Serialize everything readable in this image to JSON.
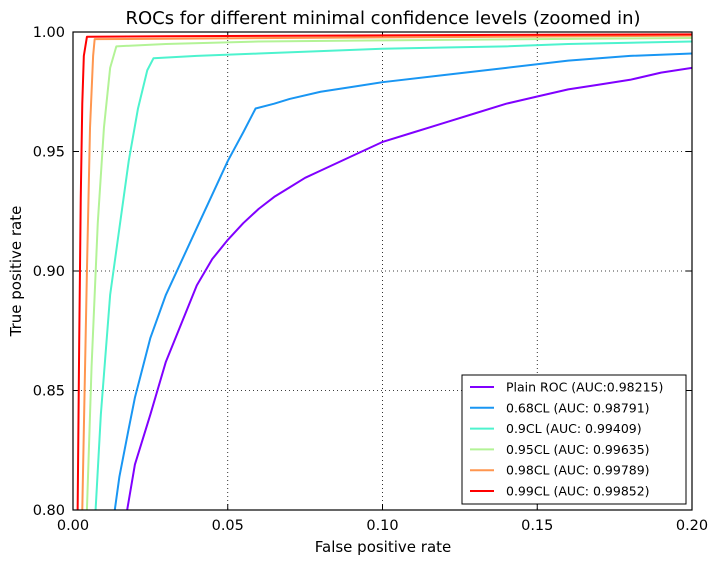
{
  "chart_data": {
    "type": "line",
    "title": "ROCs for different minimal confidence levels (zoomed in)",
    "xlabel": "False positive rate",
    "ylabel": "True positive rate",
    "xlim": [
      0.0,
      0.2
    ],
    "ylim": [
      0.8,
      1.0
    ],
    "xticks": [
      0.0,
      0.05,
      0.1,
      0.15,
      0.2
    ],
    "xtick_labels": [
      "0.00",
      "0.05",
      "0.10",
      "0.15",
      "0.20"
    ],
    "yticks": [
      0.8,
      0.85,
      0.9,
      0.95,
      1.0
    ],
    "ytick_labels": [
      "0.80",
      "0.85",
      "0.90",
      "0.95",
      "1.00"
    ],
    "grid": true,
    "legend_position": "lower-right",
    "series": [
      {
        "name": "Plain ROC (AUC:0.98215)",
        "color": "#8000ff",
        "x": [
          0.0175,
          0.02,
          0.025,
          0.03,
          0.035,
          0.04,
          0.045,
          0.05,
          0.055,
          0.06,
          0.065,
          0.07,
          0.075,
          0.08,
          0.09,
          0.1,
          0.11,
          0.12,
          0.13,
          0.14,
          0.15,
          0.16,
          0.17,
          0.18,
          0.19,
          0.2
        ],
        "y": [
          0.8,
          0.819,
          0.84,
          0.862,
          0.878,
          0.894,
          0.905,
          0.913,
          0.92,
          0.926,
          0.931,
          0.935,
          0.939,
          0.942,
          0.948,
          0.954,
          0.958,
          0.962,
          0.966,
          0.97,
          0.973,
          0.976,
          0.978,
          0.98,
          0.983,
          0.985
        ]
      },
      {
        "name": "0.68CL (AUC: 0.98791)",
        "color": "#1996f3",
        "x": [
          0.0135,
          0.015,
          0.018,
          0.02,
          0.025,
          0.03,
          0.035,
          0.04,
          0.045,
          0.05,
          0.055,
          0.059,
          0.065,
          0.07,
          0.08,
          0.09,
          0.1,
          0.12,
          0.14,
          0.16,
          0.18,
          0.2
        ],
        "y": [
          0.8,
          0.814,
          0.834,
          0.847,
          0.872,
          0.89,
          0.904,
          0.918,
          0.932,
          0.946,
          0.958,
          0.968,
          0.97,
          0.972,
          0.975,
          0.977,
          0.979,
          0.982,
          0.985,
          0.988,
          0.99,
          0.991
        ]
      },
      {
        "name": "0.9CL (AUC: 0.99409)",
        "color": "#4df3ce",
        "x": [
          0.0073,
          0.009,
          0.012,
          0.015,
          0.018,
          0.021,
          0.024,
          0.026,
          0.04,
          0.06,
          0.08,
          0.1,
          0.12,
          0.14,
          0.16,
          0.18,
          0.2
        ],
        "y": [
          0.8,
          0.84,
          0.89,
          0.918,
          0.946,
          0.968,
          0.984,
          0.989,
          0.99,
          0.991,
          0.992,
          0.993,
          0.9935,
          0.994,
          0.995,
          0.9955,
          0.996
        ]
      },
      {
        "name": "0.95CL (AUC: 0.99635)",
        "color": "#b3f396",
        "x": [
          0.0045,
          0.006,
          0.008,
          0.01,
          0.012,
          0.014,
          0.03,
          0.06,
          0.1,
          0.15,
          0.2
        ],
        "y": [
          0.8,
          0.86,
          0.92,
          0.96,
          0.985,
          0.994,
          0.995,
          0.996,
          0.9965,
          0.997,
          0.9975
        ]
      },
      {
        "name": "0.98CL (AUC: 0.99789)",
        "color": "#ff964f",
        "x": [
          0.003,
          0.0045,
          0.0055,
          0.0065,
          0.007,
          0.03,
          0.08,
          0.14,
          0.2
        ],
        "y": [
          0.8,
          0.9,
          0.96,
          0.99,
          0.997,
          0.9972,
          0.9976,
          0.998,
          0.9985
        ]
      },
      {
        "name": "0.99CL (AUC: 0.99852)",
        "color": "#ff0000",
        "x": [
          0.0015,
          0.002,
          0.0025,
          0.003,
          0.0035,
          0.0045,
          0.03,
          0.08,
          0.14,
          0.2
        ],
        "y": [
          0.8,
          0.87,
          0.93,
          0.97,
          0.99,
          0.998,
          0.9982,
          0.9985,
          0.9988,
          0.999
        ]
      }
    ]
  }
}
